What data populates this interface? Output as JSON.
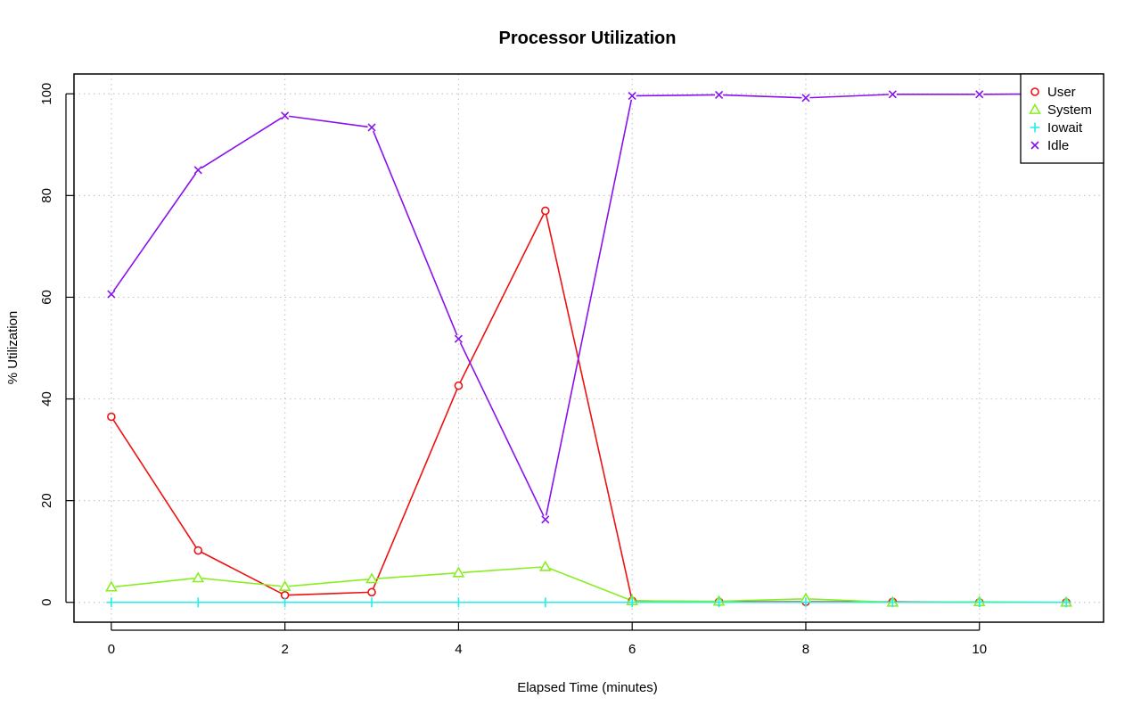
{
  "chart_data": {
    "type": "line",
    "title": "Processor Utilization",
    "xlabel": "Elapsed Time (minutes)",
    "ylabel": "% Utilization",
    "x": [
      0,
      1,
      2,
      3,
      4,
      5,
      6,
      7,
      8,
      9,
      10,
      11
    ],
    "xlim": [
      -0.43,
      11.43
    ],
    "ylim": [
      -3.9,
      103.9
    ],
    "xticks": [
      0,
      2,
      4,
      6,
      8,
      10
    ],
    "yticks": [
      0,
      20,
      40,
      60,
      80,
      100
    ],
    "grid": true,
    "legend_position": "top-right",
    "series": [
      {
        "name": "User",
        "color": "#ee1111",
        "marker": "circle",
        "values": [
          36.5,
          10.2,
          1.4,
          2.0,
          42.6,
          77.0,
          0.3,
          0.1,
          0.1,
          0.1,
          0.0,
          0.0
        ]
      },
      {
        "name": "System",
        "color": "#88ee22",
        "marker": "triangle",
        "values": [
          3.0,
          4.8,
          3.1,
          4.6,
          5.8,
          7.0,
          0.3,
          0.2,
          0.7,
          0.0,
          0.1,
          0.0
        ]
      },
      {
        "name": "Iowait",
        "color": "#22eeee",
        "marker": "plus",
        "values": [
          0.0,
          0.0,
          0.0,
          0.0,
          0.0,
          0.0,
          0.0,
          0.0,
          0.0,
          0.0,
          0.0,
          0.0
        ]
      },
      {
        "name": "Idle",
        "color": "#8811ee",
        "marker": "cross",
        "values": [
          60.6,
          85.0,
          95.7,
          93.4,
          51.8,
          16.3,
          99.6,
          99.8,
          99.2,
          99.9,
          99.9,
          100.0
        ]
      }
    ]
  }
}
